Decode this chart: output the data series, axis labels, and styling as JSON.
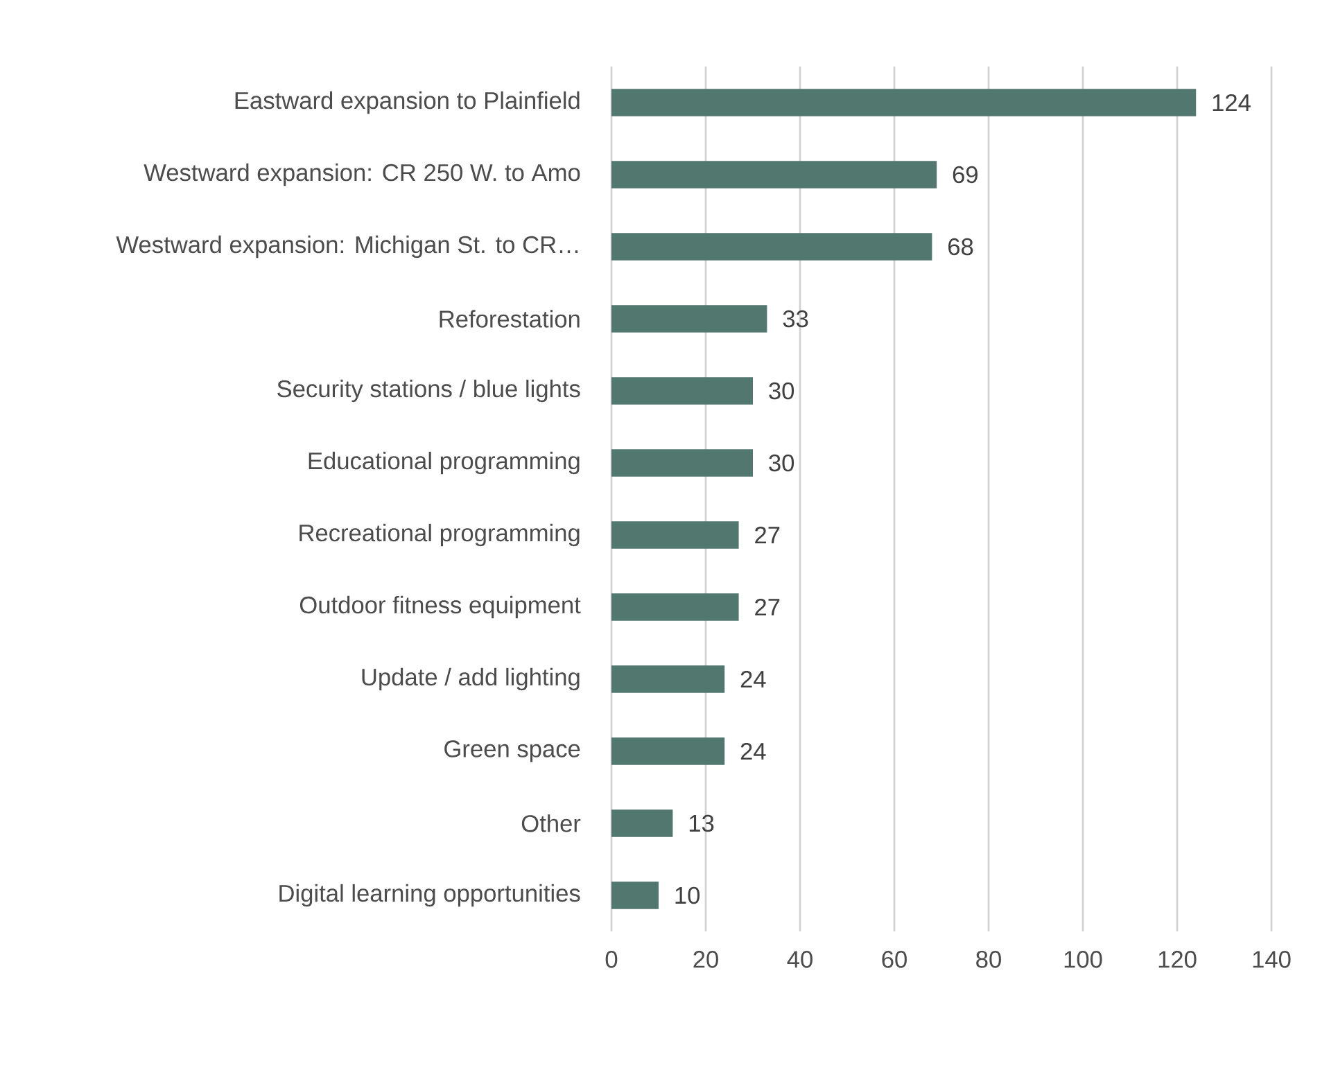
{
  "chart_data": {
    "type": "bar",
    "orientation": "horizontal",
    "categories": [
      "Eastward expansion to Plainfield",
      "Westward expansion: CR 250 W. to Amo",
      "Westward expansion: Michigan St. to CR…",
      "Reforestation",
      "Security stations / blue lights",
      "Educational programming",
      "Recreational programming",
      "Outdoor fitness equipment",
      "Update / add lighting",
      "Green space",
      "Other",
      "Digital learning opportunities"
    ],
    "values": [
      124,
      69,
      68,
      33,
      30,
      30,
      27,
      27,
      24,
      24,
      13,
      10
    ],
    "color": "#52776f",
    "xlim": [
      0,
      140
    ],
    "xticks": [
      0,
      20,
      40,
      60,
      80,
      100,
      120,
      140
    ],
    "grid": "x",
    "data_labels": true
  }
}
